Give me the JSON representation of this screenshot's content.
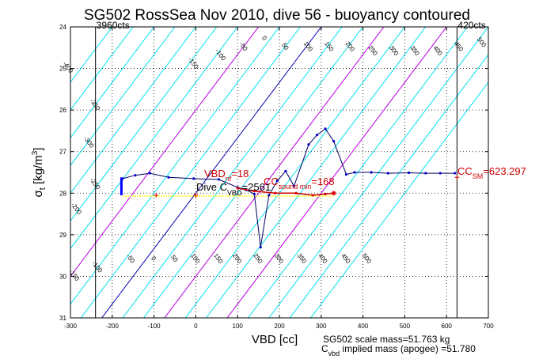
{
  "chart_data": {
    "type": "line",
    "title": "SG502 RossSea Nov 2010, dive 56 - buoyancy contoured",
    "xlabel": "VBD [cc]",
    "ylabel_main": "σ",
    "ylabel_sub": "t",
    "ylabel_units": " [kg/m",
    "ylabel_units_sup": "3",
    "ylabel_units_end": "]",
    "xlim": [
      -300,
      700
    ],
    "ylim": [
      24,
      31
    ],
    "y_reversed": true,
    "grid": true,
    "xticks": [
      -300,
      -200,
      -100,
      0,
      100,
      200,
      300,
      400,
      500,
      600,
      700
    ],
    "yticks": [
      24,
      25,
      26,
      27,
      28,
      29,
      30,
      31
    ],
    "vlines": [
      {
        "x": -240,
        "label": "3960cts"
      },
      {
        "x": 625,
        "label": "420cts"
      }
    ],
    "contours": {
      "slope_x_per_y": 75,
      "cyan_values": [
        -500,
        -450,
        -400,
        -350,
        -300,
        -250,
        -200,
        -150,
        -100,
        -50,
        50,
        100,
        150,
        200,
        250,
        300,
        350,
        400,
        450,
        500
      ],
      "magenta_values": [
        -150,
        150,
        300
      ],
      "blue_values": [
        0
      ],
      "colors": {
        "cyan": "#00e0f0",
        "magenta": "#e000e0",
        "blue": "#0000b0"
      },
      "labels_top": [
        {
          "x": -310,
          "y": 25.0,
          "text": "-400"
        },
        {
          "x": -245,
          "y": 25.9,
          "text": "-350"
        },
        {
          "x": -260,
          "y": 26.8,
          "text": "-300"
        },
        {
          "x": -245,
          "y": 27.8,
          "text": "-250"
        },
        {
          "x": -290,
          "y": 28.4,
          "text": "-200"
        },
        {
          "x": -10,
          "y": 24.9,
          "text": "-150"
        },
        {
          "x": 55,
          "y": 24.7,
          "text": "-100"
        },
        {
          "x": 110,
          "y": 24.5,
          "text": "-50"
        },
        {
          "x": 160,
          "y": 24.3,
          "text": "0"
        },
        {
          "x": 210,
          "y": 24.5,
          "text": "50"
        },
        {
          "x": 265,
          "y": 24.5,
          "text": "100"
        },
        {
          "x": 315,
          "y": 24.5,
          "text": "150"
        },
        {
          "x": 365,
          "y": 24.5,
          "text": "200"
        },
        {
          "x": 420,
          "y": 24.6,
          "text": "250"
        },
        {
          "x": 470,
          "y": 24.6,
          "text": "300"
        },
        {
          "x": 520,
          "y": 24.6,
          "text": "350"
        },
        {
          "x": 575,
          "y": 24.6,
          "text": "400"
        },
        {
          "x": 625,
          "y": 24.5,
          "text": "450"
        },
        {
          "x": 680,
          "y": 24.4,
          "text": "500"
        }
      ],
      "labels_bottom": [
        {
          "x": -295,
          "y": 30.0,
          "text": "-150"
        },
        {
          "x": -240,
          "y": 29.8,
          "text": "-100"
        },
        {
          "x": -160,
          "y": 29.6,
          "text": "-50"
        },
        {
          "x": -105,
          "y": 29.6,
          "text": "0"
        },
        {
          "x": -55,
          "y": 29.6,
          "text": "50"
        },
        {
          "x": -5,
          "y": 29.6,
          "text": "100"
        },
        {
          "x": 50,
          "y": 29.6,
          "text": "150"
        },
        {
          "x": 95,
          "y": 29.6,
          "text": "200"
        },
        {
          "x": 145,
          "y": 29.6,
          "text": "250"
        },
        {
          "x": 195,
          "y": 29.6,
          "text": "300"
        },
        {
          "x": 250,
          "y": 29.6,
          "text": "350"
        },
        {
          "x": 300,
          "y": 29.6,
          "text": "400"
        },
        {
          "x": 355,
          "y": 29.6,
          "text": "450"
        },
        {
          "x": 405,
          "y": 29.6,
          "text": "500"
        }
      ]
    },
    "series": [
      {
        "x": [
          -175,
          -145,
          -110,
          -65,
          -5,
          55,
          100,
          120,
          140,
          155,
          175,
          195,
          215,
          235,
          270,
          290,
          310,
          330,
          360,
          380,
          420,
          460,
          510,
          550,
          585,
          620
        ],
        "y": [
          27.65,
          27.57,
          27.52,
          27.62,
          27.65,
          27.67,
          27.86,
          27.92,
          28.02,
          29.3,
          28.05,
          27.7,
          27.47,
          27.83,
          26.83,
          26.6,
          26.45,
          26.75,
          27.55,
          27.5,
          27.5,
          27.52,
          27.51,
          27.52,
          27.52,
          27.52
        ],
        "color": "#000060"
      }
    ],
    "bracket": {
      "x": -178,
      "y_top": 27.62,
      "y_bottom": 28.05,
      "color": "#0000ff"
    },
    "floor_line": {
      "x_start": -175,
      "x_end": 330,
      "y": 28.07,
      "color": "#ffff00"
    },
    "red_points": [
      {
        "x": 100,
        "y": 27.88
      },
      {
        "x": 140,
        "y": 27.95
      },
      {
        "x": 190,
        "y": 28.0
      },
      {
        "x": 240,
        "y": 28.0
      },
      {
        "x": 280,
        "y": 28.05
      },
      {
        "x": 310,
        "y": 28.02
      },
      {
        "x": 330,
        "y": 28.0
      }
    ],
    "red_plus_points": [
      {
        "x": -95,
        "y": 28.05
      },
      {
        "x": 0,
        "y": 28.05
      },
      {
        "x": 625,
        "y": 27.62
      }
    ],
    "annotations": {
      "vbd_main": "VBD",
      "vbd_sub": "nf",
      "vbd_value": "=18",
      "cc_main": "CC",
      "cc_sub": "sound min",
      "cc_value": "=168",
      "dive_main": "Dive C",
      "dive_sub": "VBD",
      "dive_value": "=2561",
      "cc_sm_main": "CC",
      "cc_sm_sub": "SM",
      "cc_sm_value": "=623.297"
    },
    "footer": {
      "line1": "SG502 scale mass=51.763 kg",
      "line2_main": "C",
      "line2_sub": "vbd",
      "line2_rest": " implied mass (apogee) =51.780"
    }
  }
}
